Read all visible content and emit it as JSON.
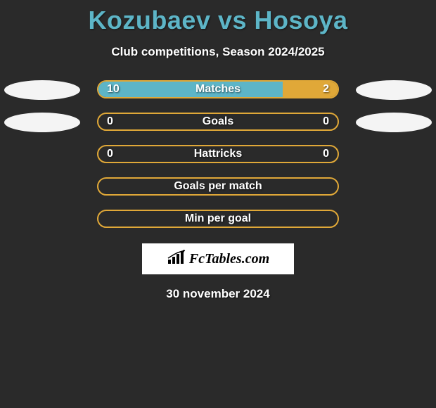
{
  "title": "Kozubaev vs Hosoya",
  "subtitle": "Club competitions, Season 2024/2025",
  "date": "30 november 2024",
  "logo_text": "FcTables.com",
  "colors": {
    "background": "#2a2a2a",
    "title_color": "#5db5c7",
    "text_color": "#ffffff",
    "left_ellipse": "#f4f4f4",
    "right_ellipse": "#f4f4f4",
    "bar_border": "#e0a838",
    "left_fill": "#5db5c7",
    "right_fill": "#e0a838",
    "logo_bg": "#ffffff"
  },
  "rows": [
    {
      "label": "Matches",
      "left_val": "10",
      "right_val": "2",
      "left_pct": 77,
      "right_pct": 23,
      "show_left_ellipse": true,
      "show_right_ellipse": true,
      "show_vals": true
    },
    {
      "label": "Goals",
      "left_val": "0",
      "right_val": "0",
      "left_pct": 0,
      "right_pct": 0,
      "show_left_ellipse": true,
      "show_right_ellipse": true,
      "show_vals": true
    },
    {
      "label": "Hattricks",
      "left_val": "0",
      "right_val": "0",
      "left_pct": 0,
      "right_pct": 0,
      "show_left_ellipse": false,
      "show_right_ellipse": false,
      "show_vals": true
    },
    {
      "label": "Goals per match",
      "left_val": "",
      "right_val": "",
      "left_pct": 0,
      "right_pct": 0,
      "show_left_ellipse": false,
      "show_right_ellipse": false,
      "show_vals": false
    },
    {
      "label": "Min per goal",
      "left_val": "",
      "right_val": "",
      "left_pct": 0,
      "right_pct": 0,
      "show_left_ellipse": false,
      "show_right_ellipse": false,
      "show_vals": false
    }
  ]
}
